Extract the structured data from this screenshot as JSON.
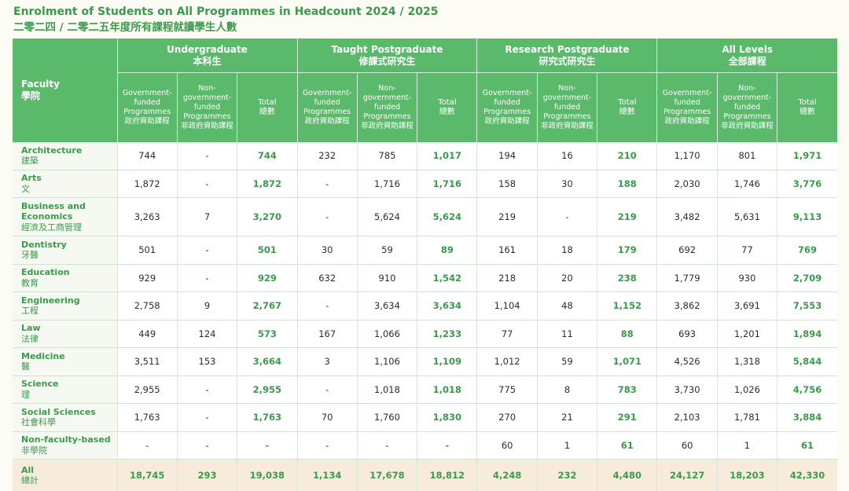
{
  "title": {
    "en": "Enrolment of Students on All Programmes in Headcount 2024 / 2025",
    "zh": "二零二四 / 二零二五年度所有課程就讀學生人數"
  },
  "header": {
    "faculty": {
      "en": "Faculty",
      "zh": "學院"
    },
    "groups": [
      {
        "en": "Undergraduate",
        "zh": "本科生"
      },
      {
        "en": "Taught Postgraduate",
        "zh": "修課式研究生"
      },
      {
        "en": "Research Postgraduate",
        "zh": "研究式研究生"
      },
      {
        "en": "All Levels",
        "zh": "全部課程"
      }
    ],
    "sub": {
      "gov": {
        "en": "Government-funded Programmes",
        "zh": "政府資助課程"
      },
      "nongov": {
        "en": "Non-government-funded Programmes",
        "zh": "非政府資助課程"
      },
      "total": {
        "en": "Total",
        "zh": "總數"
      }
    }
  },
  "rows": [
    {
      "en": "Architecture",
      "zh": "建築",
      "values": [
        "744",
        "-",
        "744",
        "232",
        "785",
        "1,017",
        "194",
        "16",
        "210",
        "1,170",
        "801",
        "1,971"
      ]
    },
    {
      "en": "Arts",
      "zh": "文",
      "values": [
        "1,872",
        "-",
        "1,872",
        "-",
        "1,716",
        "1,716",
        "158",
        "30",
        "188",
        "2,030",
        "1,746",
        "3,776"
      ]
    },
    {
      "en": "Business and Economics",
      "zh": "經濟及工商管理",
      "values": [
        "3,263",
        "7",
        "3,270",
        "-",
        "5,624",
        "5,624",
        "219",
        "-",
        "219",
        "3,482",
        "5,631",
        "9,113"
      ]
    },
    {
      "en": "Dentistry",
      "zh": "牙醫",
      "values": [
        "501",
        "-",
        "501",
        "30",
        "59",
        "89",
        "161",
        "18",
        "179",
        "692",
        "77",
        "769"
      ]
    },
    {
      "en": "Education",
      "zh": "教育",
      "values": [
        "929",
        "-",
        "929",
        "632",
        "910",
        "1,542",
        "218",
        "20",
        "238",
        "1,779",
        "930",
        "2,709"
      ]
    },
    {
      "en": "Engineering",
      "zh": "工程",
      "values": [
        "2,758",
        "9",
        "2,767",
        "-",
        "3,634",
        "3,634",
        "1,104",
        "48",
        "1,152",
        "3,862",
        "3,691",
        "7,553"
      ]
    },
    {
      "en": "Law",
      "zh": "法律",
      "values": [
        "449",
        "124",
        "573",
        "167",
        "1,066",
        "1,233",
        "77",
        "11",
        "88",
        "693",
        "1,201",
        "1,894"
      ]
    },
    {
      "en": "Medicine",
      "zh": "醫",
      "values": [
        "3,511",
        "153",
        "3,664",
        "3",
        "1,106",
        "1,109",
        "1,012",
        "59",
        "1,071",
        "4,526",
        "1,318",
        "5,844"
      ]
    },
    {
      "en": "Science",
      "zh": "理",
      "values": [
        "2,955",
        "-",
        "2,955",
        "-",
        "1,018",
        "1,018",
        "775",
        "8",
        "783",
        "3,730",
        "1,026",
        "4,756"
      ]
    },
    {
      "en": "Social Sciences",
      "zh": "社會科學",
      "values": [
        "1,763",
        "-",
        "1,763",
        "70",
        "1,760",
        "1,830",
        "270",
        "21",
        "291",
        "2,103",
        "1,781",
        "3,884"
      ]
    },
    {
      "en": "Non-faculty-based",
      "zh": "非學院",
      "values": [
        "-",
        "-",
        "-",
        "-",
        "-",
        "-",
        "60",
        "1",
        "61",
        "60",
        "1",
        "61"
      ]
    },
    {
      "en": "All",
      "zh": "總計",
      "values": [
        "18,745",
        "293",
        "19,038",
        "1,134",
        "17,678",
        "18,812",
        "4,248",
        "232",
        "4,480",
        "24,127",
        "18,203",
        "42,330"
      ]
    }
  ],
  "colors": {
    "header_bg": "#5ab96a",
    "accent_text": "#3b9a4c",
    "total_row_bg": "#f7ecdc",
    "page_bg": "#fcfbf4"
  }
}
